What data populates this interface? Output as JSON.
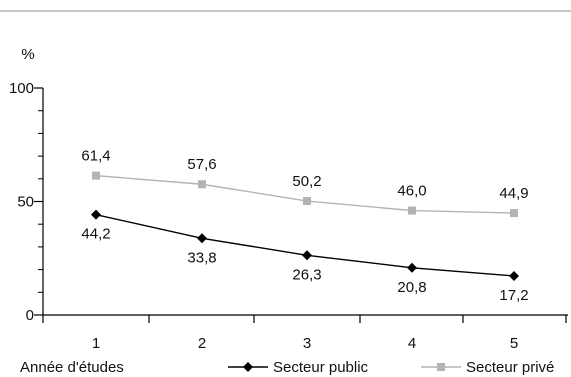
{
  "chart_data": {
    "type": "line",
    "categories": [
      "1",
      "2",
      "3",
      "4",
      "5"
    ],
    "series": [
      {
        "name": "Secteur public",
        "values": [
          44.2,
          33.8,
          26.3,
          20.8,
          17.2
        ],
        "labels": [
          "44,2",
          "33,8",
          "26,3",
          "20,8",
          "17,2"
        ],
        "color": "#000000",
        "marker": "diamond"
      },
      {
        "name": "Secteur privé",
        "values": [
          61.4,
          57.6,
          50.2,
          46.0,
          44.9
        ],
        "labels": [
          "61,4",
          "57,6",
          "50,2",
          "46,0",
          "44,9"
        ],
        "color": "#b3b3b3",
        "marker": "square"
      }
    ],
    "y_unit": "%",
    "xlabel": "Année d'études",
    "ylabel": "%",
    "ylim": [
      0,
      100
    ],
    "yticks": [
      0,
      50,
      100
    ],
    "grid": false,
    "legend_position": "bottom-right",
    "top_rule_color": "#c8c8c8"
  }
}
